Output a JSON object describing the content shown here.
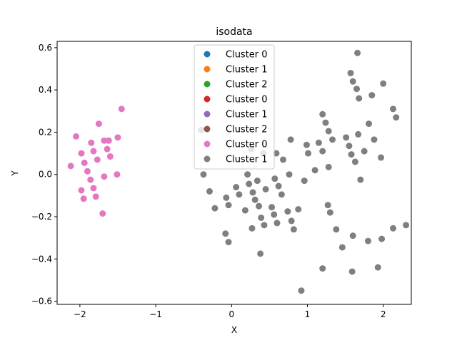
{
  "chart_data": {
    "type": "scatter",
    "title": "isodata",
    "xlabel": "X",
    "ylabel": "Y",
    "xlim": [
      -2.3,
      2.37
    ],
    "ylim": [
      -0.615,
      0.63
    ],
    "xticks": [
      {
        "value": -2,
        "label": "−2"
      },
      {
        "value": -1,
        "label": "−1"
      },
      {
        "value": 0,
        "label": "0"
      },
      {
        "value": 1,
        "label": "1"
      },
      {
        "value": 2,
        "label": "2"
      }
    ],
    "yticks": [
      {
        "value": -0.6,
        "label": "−0.6"
      },
      {
        "value": -0.4,
        "label": "−0.4"
      },
      {
        "value": -0.2,
        "label": "−0.2"
      },
      {
        "value": 0.0,
        "label": "0.0"
      },
      {
        "value": 0.2,
        "label": "0.2"
      },
      {
        "value": 0.4,
        "label": "0.4"
      },
      {
        "value": 0.6,
        "label": "0.6"
      }
    ],
    "grid": false,
    "legend_position": "upper center",
    "series": [
      {
        "name": "Cluster 0",
        "color": "#1f77b4",
        "points": []
      },
      {
        "name": "Cluster 1",
        "color": "#ff7f0e",
        "points": []
      },
      {
        "name": "Cluster 2",
        "color": "#2ca02c",
        "points": []
      },
      {
        "name": "Cluster 0",
        "color": "#d62728",
        "points": []
      },
      {
        "name": "Cluster 1",
        "color": "#9467bd",
        "points": []
      },
      {
        "name": "Cluster 2",
        "color": "#8c564b",
        "points": []
      },
      {
        "name": "Cluster 0",
        "color": "#e377c2",
        "points": [
          [
            -2.12,
            0.04
          ],
          [
            -2.05,
            0.18
          ],
          [
            -1.98,
            0.1
          ],
          [
            -1.98,
            -0.075
          ],
          [
            -1.95,
            -0.115
          ],
          [
            -1.94,
            0.055
          ],
          [
            -1.9,
            0.015
          ],
          [
            -1.86,
            -0.025
          ],
          [
            -1.85,
            0.15
          ],
          [
            -1.82,
            0.11
          ],
          [
            -1.82,
            -0.065
          ],
          [
            -1.79,
            -0.105
          ],
          [
            -1.77,
            0.07
          ],
          [
            -1.75,
            0.24
          ],
          [
            -1.7,
            -0.185
          ],
          [
            -1.68,
            0.16
          ],
          [
            -1.68,
            -0.01
          ],
          [
            -1.64,
            0.12
          ],
          [
            -1.6,
            0.085
          ],
          [
            -1.51,
            0.0
          ],
          [
            -1.5,
            0.175
          ],
          [
            -1.45,
            0.31
          ],
          [
            -1.62,
            0.16
          ]
        ]
      },
      {
        "name": "Cluster 1",
        "color": "#7f7f7f",
        "points": [
          [
            -0.4,
            0.21
          ],
          [
            -0.37,
            0.0
          ],
          [
            -0.29,
            -0.08
          ],
          [
            -0.22,
            -0.16
          ],
          [
            -0.08,
            -0.28
          ],
          [
            -0.07,
            -0.11
          ],
          [
            -0.04,
            -0.32
          ],
          [
            -0.04,
            -0.145
          ],
          [
            0.06,
            -0.06
          ],
          [
            0.1,
            -0.095
          ],
          [
            0.18,
            -0.17
          ],
          [
            0.21,
            0.0
          ],
          [
            0.23,
            -0.045
          ],
          [
            0.26,
            0.12
          ],
          [
            0.27,
            -0.255
          ],
          [
            0.28,
            -0.085
          ],
          [
            0.31,
            -0.12
          ],
          [
            0.34,
            -0.03
          ],
          [
            0.36,
            -0.15
          ],
          [
            0.38,
            -0.375
          ],
          [
            0.39,
            -0.205
          ],
          [
            0.42,
            0.1
          ],
          [
            0.43,
            -0.24
          ],
          [
            0.45,
            -0.07
          ],
          [
            0.53,
            -0.155
          ],
          [
            0.56,
            -0.19
          ],
          [
            0.57,
            -0.02
          ],
          [
            0.59,
            0.1
          ],
          [
            0.6,
            -0.23
          ],
          [
            0.62,
            -0.055
          ],
          [
            0.66,
            -0.095
          ],
          [
            0.68,
            0.07
          ],
          [
            0.74,
            -0.175
          ],
          [
            0.76,
            0.0
          ],
          [
            0.78,
            0.165
          ],
          [
            0.79,
            -0.22
          ],
          [
            0.82,
            -0.26
          ],
          [
            0.88,
            -0.165
          ],
          [
            0.92,
            -0.55
          ],
          [
            0.96,
            -0.03
          ],
          [
            0.99,
            0.14
          ],
          [
            1.01,
            0.1
          ],
          [
            1.1,
            0.02
          ],
          [
            1.15,
            0.15
          ],
          [
            1.2,
            0.11
          ],
          [
            1.2,
            0.285
          ],
          [
            1.2,
            -0.445
          ],
          [
            1.24,
            0.245
          ],
          [
            1.27,
            -0.145
          ],
          [
            1.28,
            0.205
          ],
          [
            1.28,
            0.035
          ],
          [
            1.3,
            -0.18
          ],
          [
            1.33,
            0.165
          ],
          [
            1.38,
            -0.26
          ],
          [
            1.46,
            -0.345
          ],
          [
            1.51,
            0.175
          ],
          [
            1.55,
            0.135
          ],
          [
            1.57,
            0.48
          ],
          [
            1.58,
            0.095
          ],
          [
            1.59,
            -0.46
          ],
          [
            1.6,
            -0.29
          ],
          [
            1.6,
            0.44
          ],
          [
            1.63,
            0.06
          ],
          [
            1.65,
            0.405
          ],
          [
            1.66,
            0.575
          ],
          [
            1.67,
            0.19
          ],
          [
            1.68,
            0.36
          ],
          [
            1.7,
            -0.025
          ],
          [
            1.75,
            0.11
          ],
          [
            1.8,
            -0.315
          ],
          [
            1.81,
            0.24
          ],
          [
            1.85,
            0.375
          ],
          [
            1.88,
            0.165
          ],
          [
            1.93,
            -0.44
          ],
          [
            1.97,
            0.08
          ],
          [
            1.98,
            -0.305
          ],
          [
            2.0,
            0.43
          ],
          [
            2.13,
            0.31
          ],
          [
            2.13,
            -0.255
          ],
          [
            2.17,
            0.27
          ],
          [
            2.3,
            -0.24
          ]
        ]
      }
    ]
  }
}
